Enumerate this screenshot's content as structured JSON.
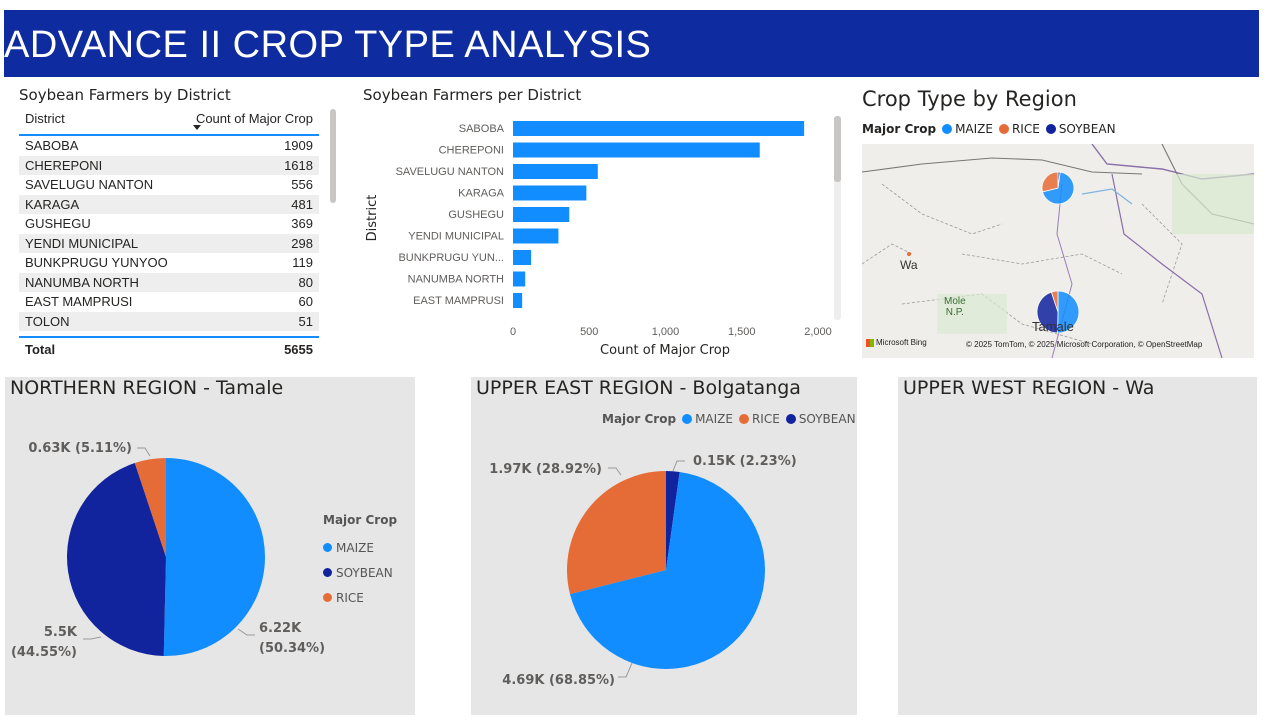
{
  "header": {
    "title": "ADVANCE II CROP TYPE ANALYSIS"
  },
  "colors": {
    "maize": "#118dff",
    "rice": "#e66c37",
    "soybean": "#12239e",
    "header_bg": "#0e2ba0",
    "panel_bg": "#e6e6e6"
  },
  "table": {
    "title": "Soybean Farmers by District",
    "col_district": "District",
    "col_count": "Count of Major Crop",
    "rows": [
      {
        "district": "SABOBA",
        "count": "1909"
      },
      {
        "district": "CHEREPONI",
        "count": "1618"
      },
      {
        "district": "SAVELUGU NANTON",
        "count": "556"
      },
      {
        "district": "KARAGA",
        "count": "481"
      },
      {
        "district": "GUSHEGU",
        "count": "369"
      },
      {
        "district": "YENDI MUNICIPAL",
        "count": "298"
      },
      {
        "district": "BUNKPRUGU YUNYOO",
        "count": "119"
      },
      {
        "district": "NANUMBA NORTH",
        "count": "80"
      },
      {
        "district": "EAST MAMPRUSI",
        "count": "60"
      },
      {
        "district": "TOLON",
        "count": "51"
      }
    ],
    "total_label": "Total",
    "total_value": "5655"
  },
  "map": {
    "title": "Crop Type by Region",
    "legend_title": "Major Crop",
    "legend_items": [
      "MAIZE",
      "RICE",
      "SOYBEAN"
    ],
    "labels": {
      "wa": "Wa",
      "mole": "Mole\nN.P.",
      "tamale": "Tamale"
    },
    "credit": "© 2025 TomTom, © 2025 Microsoft Corporation, © OpenStreetMap",
    "logo": "Microsoft Bing"
  },
  "chart_data": [
    {
      "type": "bar",
      "orientation": "horizontal",
      "title": "Soybean Farmers per District",
      "xlabel": "Count of Major Crop",
      "ylabel": "District",
      "categories": [
        "SABOBA",
        "CHEREPONI",
        "SAVELUGU NANTON",
        "KARAGA",
        "GUSHEGU",
        "YENDI MUNICIPAL",
        "BUNKPRUGU YUN...",
        "NANUMBA NORTH",
        "EAST MAMPRUSI"
      ],
      "values": [
        1909,
        1618,
        556,
        481,
        369,
        298,
        119,
        80,
        60
      ],
      "xlim": [
        0,
        2000
      ],
      "xticks": [
        "0",
        "500",
        "1,000",
        "1,500",
        "2,000"
      ],
      "xtick_values": [
        0,
        500,
        1000,
        1500,
        2000
      ],
      "grid": false
    },
    {
      "type": "pie",
      "title": "NORTHERN REGION - Tamale",
      "legend_title": "Major Crop",
      "legend_items": [
        "MAIZE",
        "SOYBEAN",
        "RICE"
      ],
      "legend_placement": "right",
      "slices": [
        {
          "name": "MAIZE",
          "value": 6.22,
          "percent": 50.34,
          "label": "6.22K",
          "pct_label": "(50.34%)"
        },
        {
          "name": "SOYBEAN",
          "value": 5.5,
          "percent": 44.55,
          "label": "5.5K",
          "pct_label": "(44.55%)"
        },
        {
          "name": "RICE",
          "value": 0.63,
          "percent": 5.11,
          "label": "0.63K (5.11%)"
        }
      ]
    },
    {
      "type": "pie",
      "title": "UPPER EAST REGION - Bolgatanga",
      "legend_title": "Major Crop",
      "legend_items": [
        "MAIZE",
        "RICE",
        "SOYBEAN"
      ],
      "legend_placement": "top",
      "slices": [
        {
          "name": "SOYBEAN",
          "value": 0.15,
          "percent": 2.23,
          "label": "0.15K (2.23%)"
        },
        {
          "name": "MAIZE",
          "value": 4.69,
          "percent": 68.85,
          "label": "4.69K (68.85%)"
        },
        {
          "name": "RICE",
          "value": 1.97,
          "percent": 28.92,
          "label": "1.97K (28.92%)"
        }
      ]
    },
    {
      "type": "pie",
      "title": "UPPER WEST REGION - Wa",
      "slices": []
    }
  ]
}
